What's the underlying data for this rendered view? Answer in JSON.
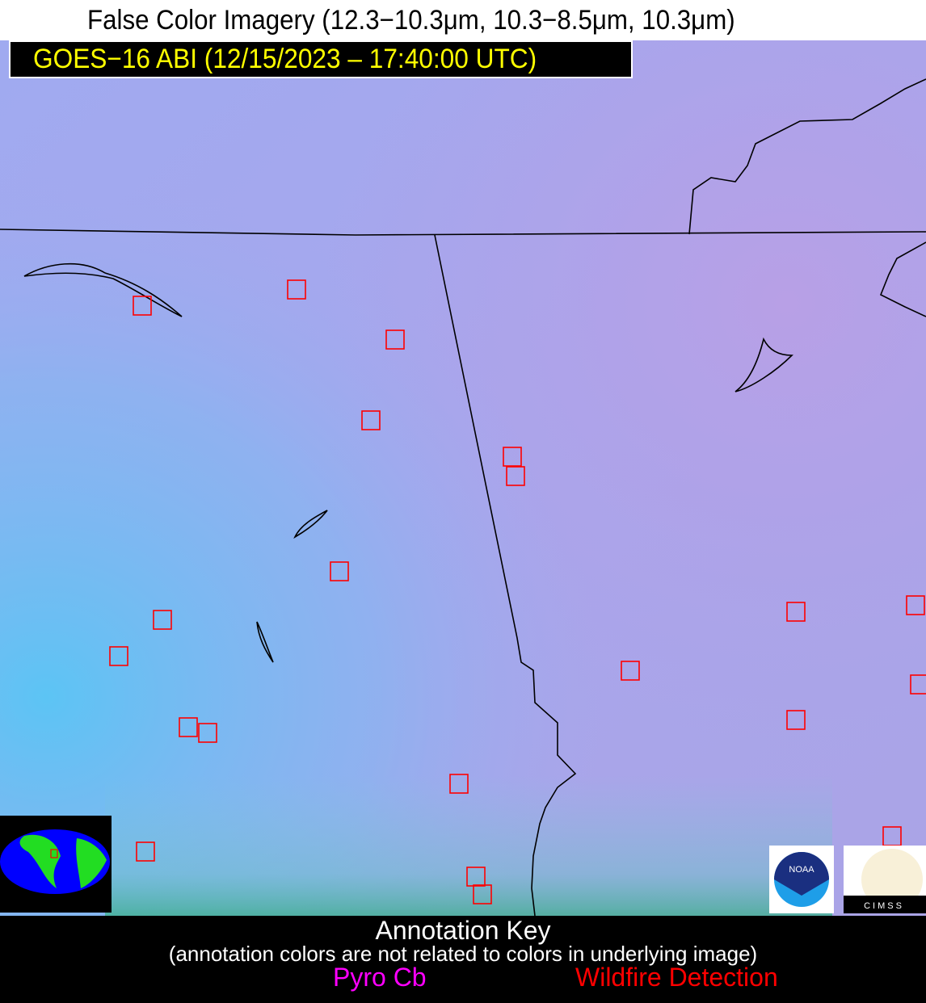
{
  "title": "False Color Imagery (12.3−10.3μm, 10.3−8.5μm, 10.3μm)",
  "subtitle": "GOES−16 ABI (12/15/2023 – 17:40:00 UTC)",
  "annotation_key": {
    "heading": "Annotation Key",
    "note": "(annotation colors are not related to colors in underlying image)",
    "items": [
      {
        "label": "Pyro Cb",
        "color": "#ff00ff"
      },
      {
        "label": "Wildfire Detection",
        "color": "#ff0000"
      }
    ]
  },
  "logos": {
    "noaa": "NOAA",
    "cimss": "CIMSS"
  },
  "colors": {
    "fire_box": "#ff0000",
    "boundary": "#000000",
    "subtitle_text": "#ffff00"
  }
}
